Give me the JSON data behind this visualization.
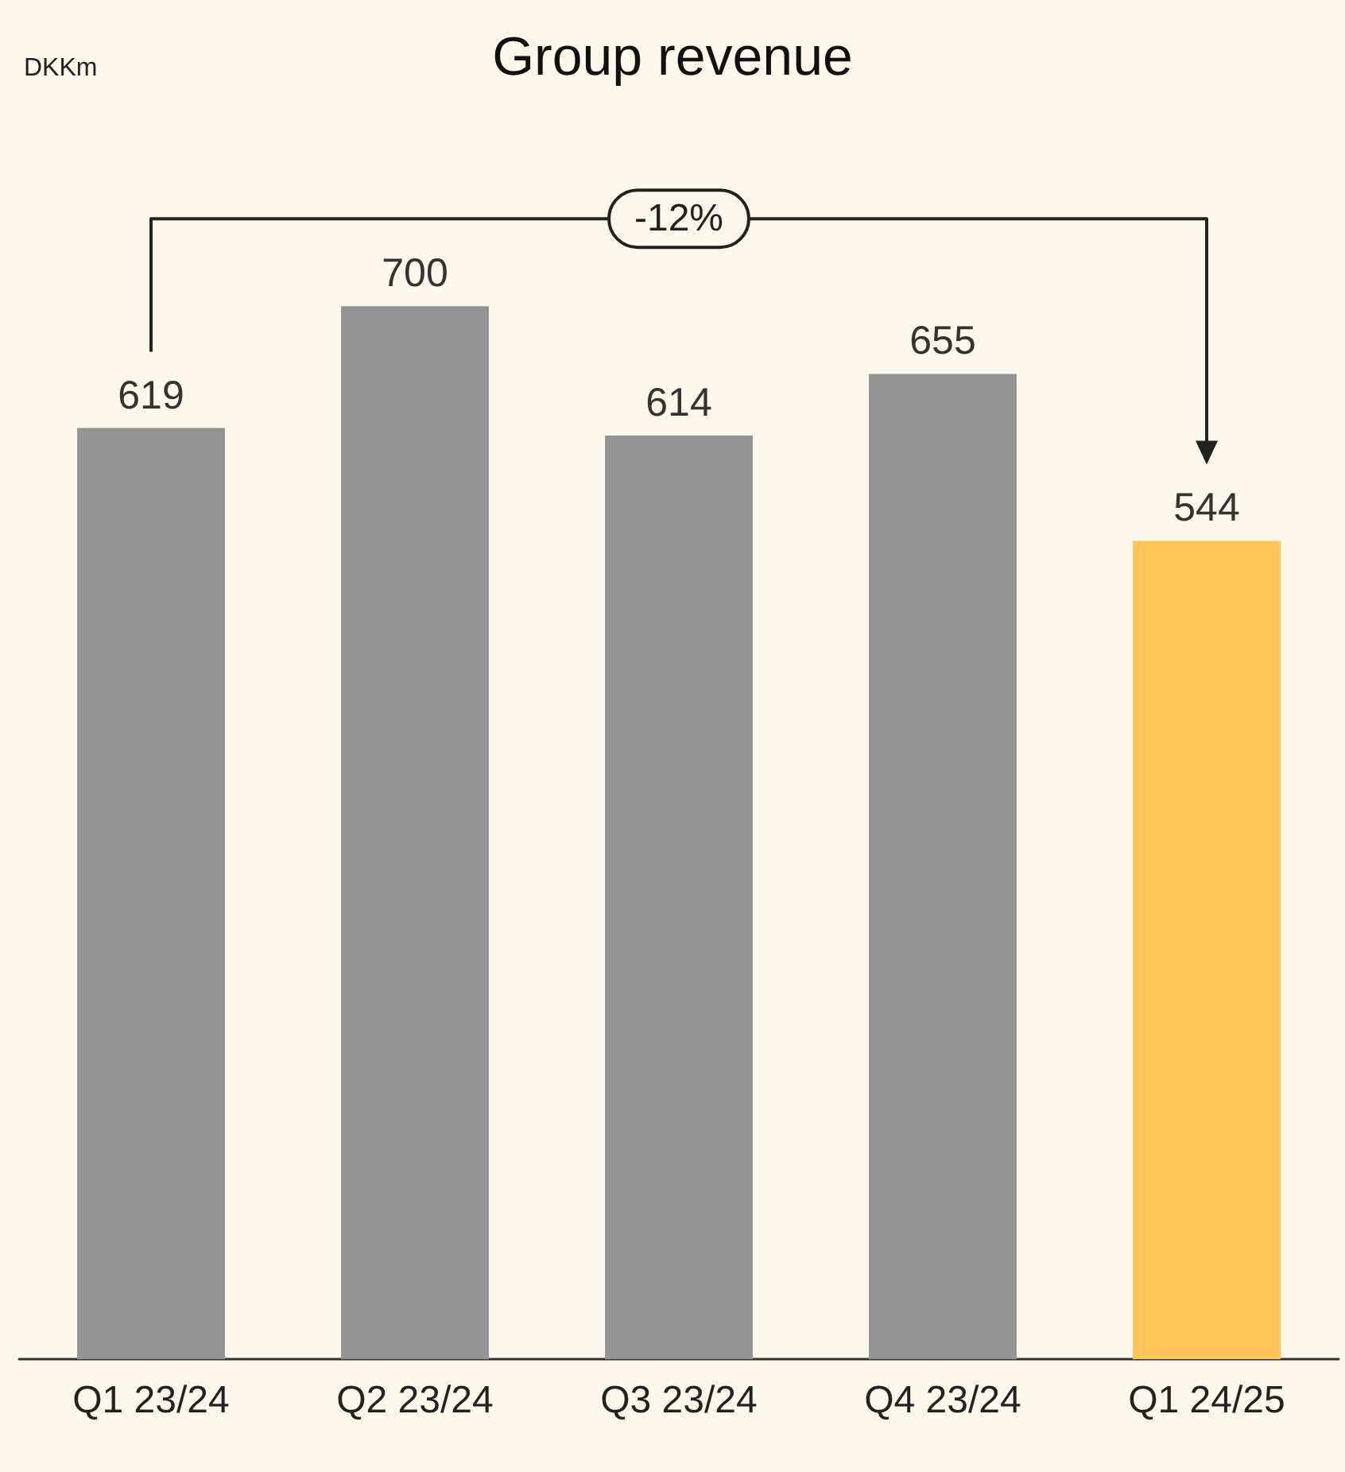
{
  "chart_data": {
    "type": "bar",
    "title": "Group revenue",
    "categories": [
      "Q1 23/24",
      "Q2 23/24",
      "Q3 23/24",
      "Q4 23/24",
      "Q1 24/25"
    ],
    "values": [
      619,
      700,
      614,
      655,
      544
    ],
    "colors": [
      "#939393",
      "#939393",
      "#939393",
      "#939393",
      "#ffc55a"
    ],
    "data_labels": true,
    "annotations": [
      "DKKm",
      "-12%"
    ]
  }
}
